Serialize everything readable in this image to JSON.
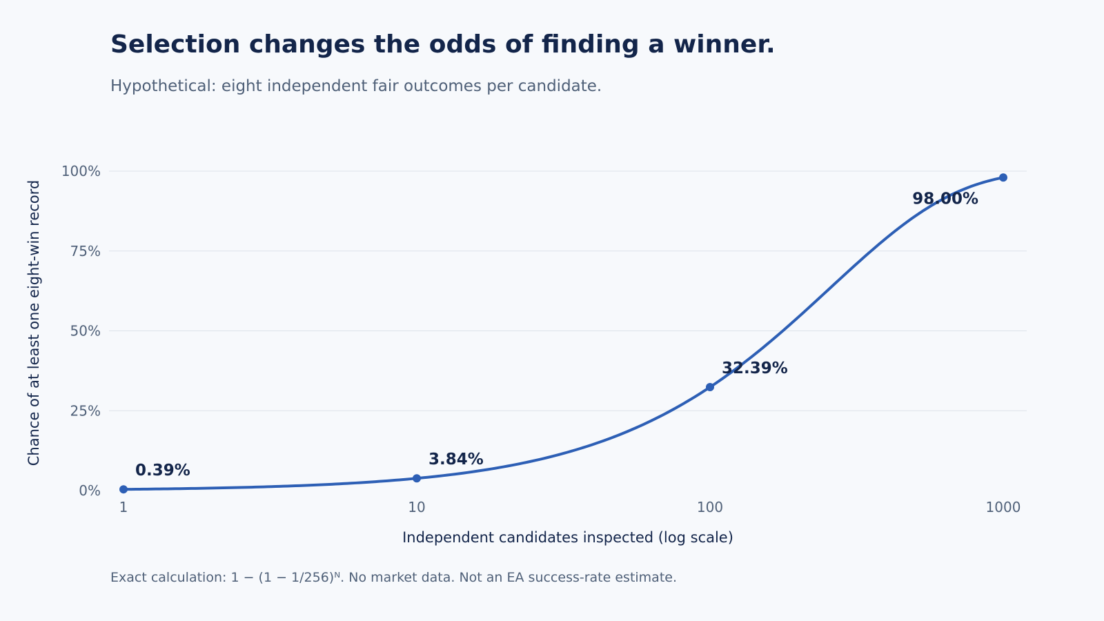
{
  "header": {
    "title": "Selection changes the odds of finding a winner.",
    "subtitle": "Hypothetical: eight independent fair outcomes per candidate."
  },
  "footnote": "Exact calculation: 1 − (1 − 1/256)ᴺ. No market data. Not an EA success-rate estimate.",
  "colors": {
    "line": "#2d5fb5",
    "label": "#13254a",
    "tick": "#4f6078",
    "grid": "#dde2ea",
    "background": "#f7f9fc"
  },
  "chart_data": {
    "type": "line",
    "title": "Selection changes the odds of finding a winner.",
    "subtitle": "Hypothetical: eight independent fair outcomes per candidate.",
    "xlabel": "Independent candidates inspected (log scale)",
    "ylabel": "Chance of at least one eight-win record",
    "x_scale": "log",
    "xlim": [
      1,
      1000
    ],
    "ylim": [
      0,
      100
    ],
    "x_ticks": [
      1,
      10,
      100,
      1000
    ],
    "x_tick_labels": [
      "1",
      "10",
      "100",
      "1000"
    ],
    "y_ticks": [
      0,
      25,
      50,
      75,
      100
    ],
    "y_tick_labels": [
      "0%",
      "25%",
      "50%",
      "75%",
      "100%"
    ],
    "grid": "horizontal",
    "series": [
      {
        "x": [
          1,
          10,
          100,
          1000
        ],
        "y": [
          0.39,
          3.84,
          32.39,
          98.0
        ],
        "labels": [
          "0.39%",
          "3.84%",
          "32.39%",
          "98.00%"
        ]
      }
    ]
  }
}
